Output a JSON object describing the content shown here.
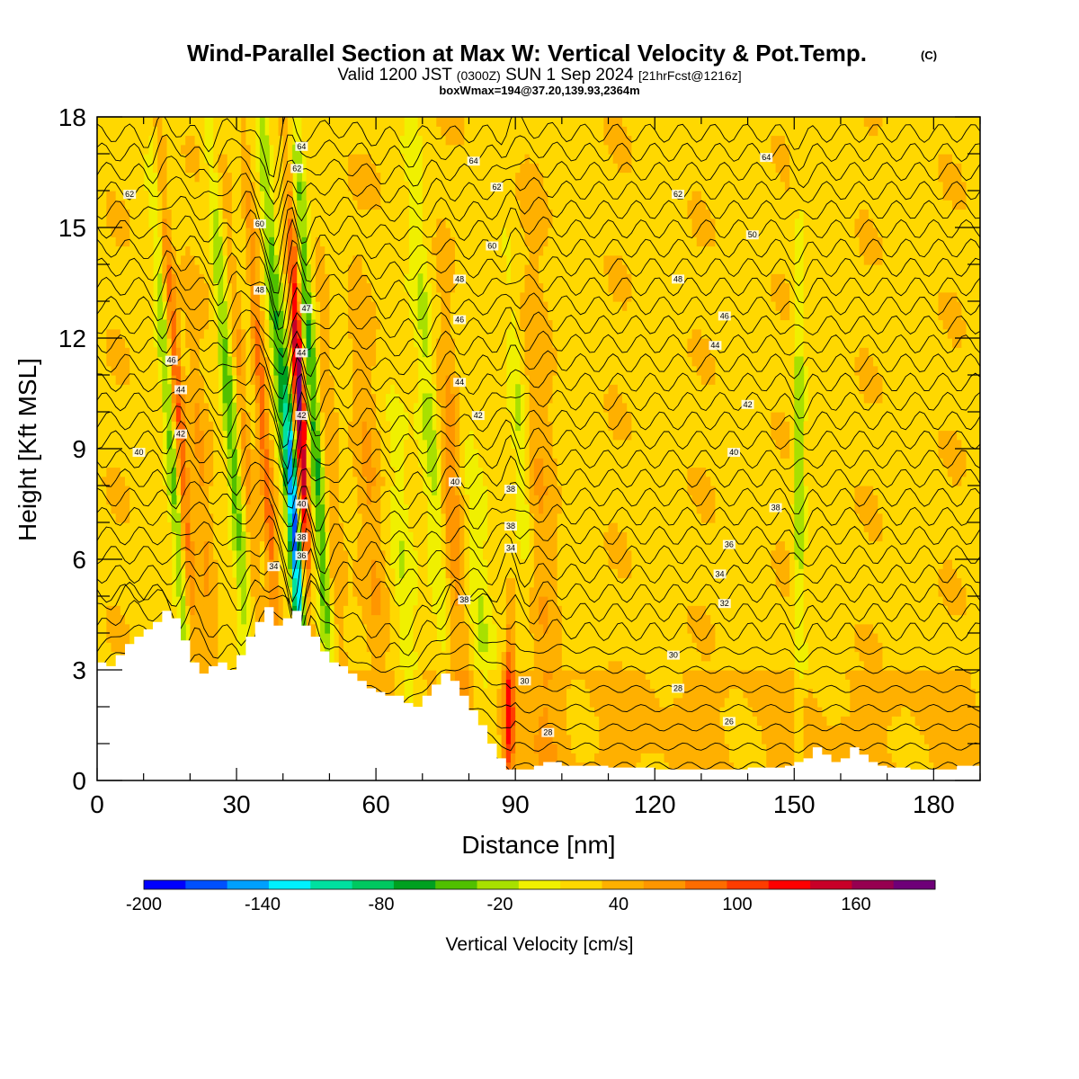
{
  "header": {
    "title": "Wind-Parallel Section at Max W: Vertical Velocity & Pot.Temp.",
    "title_mark": "(C)",
    "subtitle_a": "Valid 1200 JST",
    "subtitle_b": "(0300Z)",
    "subtitle_c": "SUN 1 Sep 2024",
    "subtitle_d": "[21hrFcst@1216z]",
    "line3": "boxWmax=194@37.20,139.93,2364m"
  },
  "chart_data": {
    "type": "heatmap",
    "xlabel": "Distance [nm]",
    "ylabel": "Height [Kft MSL]",
    "xlim": [
      0,
      190
    ],
    "ylim": [
      0,
      18
    ],
    "x_ticks": [
      0,
      30,
      60,
      90,
      120,
      150,
      180
    ],
    "y_ticks": [
      0,
      3,
      6,
      9,
      12,
      15,
      18
    ],
    "colorbar": {
      "title": "Vertical Velocity [cm/s]",
      "tick_labels": [
        -200,
        -140,
        -80,
        -20,
        40,
        100,
        160
      ],
      "levels": [
        -200,
        -180,
        -160,
        -140,
        -120,
        -100,
        -80,
        -60,
        -40,
        -20,
        0,
        20,
        40,
        60,
        80,
        100,
        120,
        140,
        160,
        180
      ],
      "colors": [
        "#0000ff",
        "#0050ff",
        "#00a0ff",
        "#00f0ff",
        "#00e0a0",
        "#00c860",
        "#00a020",
        "#50c000",
        "#a8e000",
        "#f0f000",
        "#ffd800",
        "#ffb000",
        "#ff9600",
        "#ff6c00",
        "#ff3c00",
        "#ff0000",
        "#c80028",
        "#960050",
        "#6e0078"
      ]
    },
    "terrain": {
      "x": [
        0,
        2,
        4,
        6,
        8,
        10,
        12,
        14,
        16,
        18,
        20,
        22,
        24,
        26,
        28,
        30,
        32,
        34,
        36,
        38,
        40,
        42,
        44,
        46,
        48,
        50,
        52,
        54,
        56,
        58,
        60,
        62,
        64,
        66,
        68,
        70,
        72,
        74,
        76,
        78,
        80,
        82,
        84,
        86,
        88,
        90,
        92,
        94,
        96,
        98,
        100,
        110,
        120,
        130,
        140,
        145,
        148,
        150,
        152,
        154,
        156,
        158,
        160,
        162,
        164,
        166,
        168,
        170,
        175,
        180,
        185,
        190
      ],
      "y": [
        3.2,
        3.1,
        3.4,
        3.7,
        3.9,
        4.1,
        4.3,
        4.6,
        4.4,
        3.8,
        3.2,
        2.9,
        3.1,
        3.2,
        3.0,
        3.4,
        3.9,
        4.3,
        4.7,
        4.2,
        4.4,
        4.6,
        4.2,
        3.9,
        3.5,
        3.2,
        3.1,
        2.9,
        2.7,
        2.5,
        2.4,
        2.3,
        2.3,
        2.1,
        2.0,
        2.3,
        2.6,
        2.9,
        2.7,
        2.3,
        1.9,
        1.5,
        1.0,
        0.6,
        0.3,
        0.3,
        0.3,
        0.4,
        0.5,
        0.5,
        0.4,
        0.35,
        0.3,
        0.3,
        0.35,
        0.35,
        0.4,
        0.5,
        0.6,
        0.9,
        0.7,
        0.5,
        0.6,
        0.9,
        0.7,
        0.5,
        0.4,
        0.35,
        0.3,
        0.3,
        0.4,
        0.5
      ]
    },
    "theta_contour_labels": [
      {
        "value": "64",
        "x": 44,
        "y": 17.2
      },
      {
        "value": "64",
        "x": 81,
        "y": 16.8
      },
      {
        "value": "64",
        "x": 144,
        "y": 16.9
      },
      {
        "value": "62",
        "x": 7,
        "y": 15.9
      },
      {
        "value": "62",
        "x": 43,
        "y": 16.6
      },
      {
        "value": "62",
        "x": 86,
        "y": 16.1
      },
      {
        "value": "62",
        "x": 125,
        "y": 15.9
      },
      {
        "value": "60",
        "x": 35,
        "y": 15.1
      },
      {
        "value": "60",
        "x": 85,
        "y": 14.5
      },
      {
        "value": "50",
        "x": 141,
        "y": 14.8
      },
      {
        "value": "48",
        "x": 35,
        "y": 13.3
      },
      {
        "value": "48",
        "x": 78,
        "y": 13.6
      },
      {
        "value": "48",
        "x": 125,
        "y": 13.6
      },
      {
        "value": "47",
        "x": 45,
        "y": 12.8
      },
      {
        "value": "46",
        "x": 78,
        "y": 12.5
      },
      {
        "value": "46",
        "x": 135,
        "y": 12.6
      },
      {
        "value": "46",
        "x": 16,
        "y": 11.4
      },
      {
        "value": "44",
        "x": 44,
        "y": 11.6
      },
      {
        "value": "44",
        "x": 78,
        "y": 10.8
      },
      {
        "value": "44",
        "x": 133,
        "y": 11.8
      },
      {
        "value": "44",
        "x": 18,
        "y": 10.6
      },
      {
        "value": "42",
        "x": 44,
        "y": 9.9
      },
      {
        "value": "42",
        "x": 82,
        "y": 9.9
      },
      {
        "value": "42",
        "x": 140,
        "y": 10.2
      },
      {
        "value": "42",
        "x": 18,
        "y": 9.4
      },
      {
        "value": "40",
        "x": 9,
        "y": 8.9
      },
      {
        "value": "40",
        "x": 77,
        "y": 8.1
      },
      {
        "value": "40",
        "x": 137,
        "y": 8.9
      },
      {
        "value": "40",
        "x": 44,
        "y": 7.5
      },
      {
        "value": "38",
        "x": 89,
        "y": 7.9
      },
      {
        "value": "38",
        "x": 89,
        "y": 6.9
      },
      {
        "value": "38",
        "x": 44,
        "y": 6.6
      },
      {
        "value": "38",
        "x": 146,
        "y": 7.4
      },
      {
        "value": "36",
        "x": 44,
        "y": 6.1
      },
      {
        "value": "34",
        "x": 89,
        "y": 6.3
      },
      {
        "value": "36",
        "x": 136,
        "y": 6.4
      },
      {
        "value": "34",
        "x": 38,
        "y": 5.8
      },
      {
        "value": "34",
        "x": 134,
        "y": 5.6
      },
      {
        "value": "38",
        "x": 79,
        "y": 4.9
      },
      {
        "value": "32",
        "x": 135,
        "y": 4.8
      },
      {
        "value": "30",
        "x": 124,
        "y": 3.4
      },
      {
        "value": "30",
        "x": 92,
        "y": 2.7
      },
      {
        "value": "28",
        "x": 125,
        "y": 2.5
      },
      {
        "value": "26",
        "x": 136,
        "y": 1.6
      },
      {
        "value": "28",
        "x": 97,
        "y": 1.3
      }
    ]
  }
}
